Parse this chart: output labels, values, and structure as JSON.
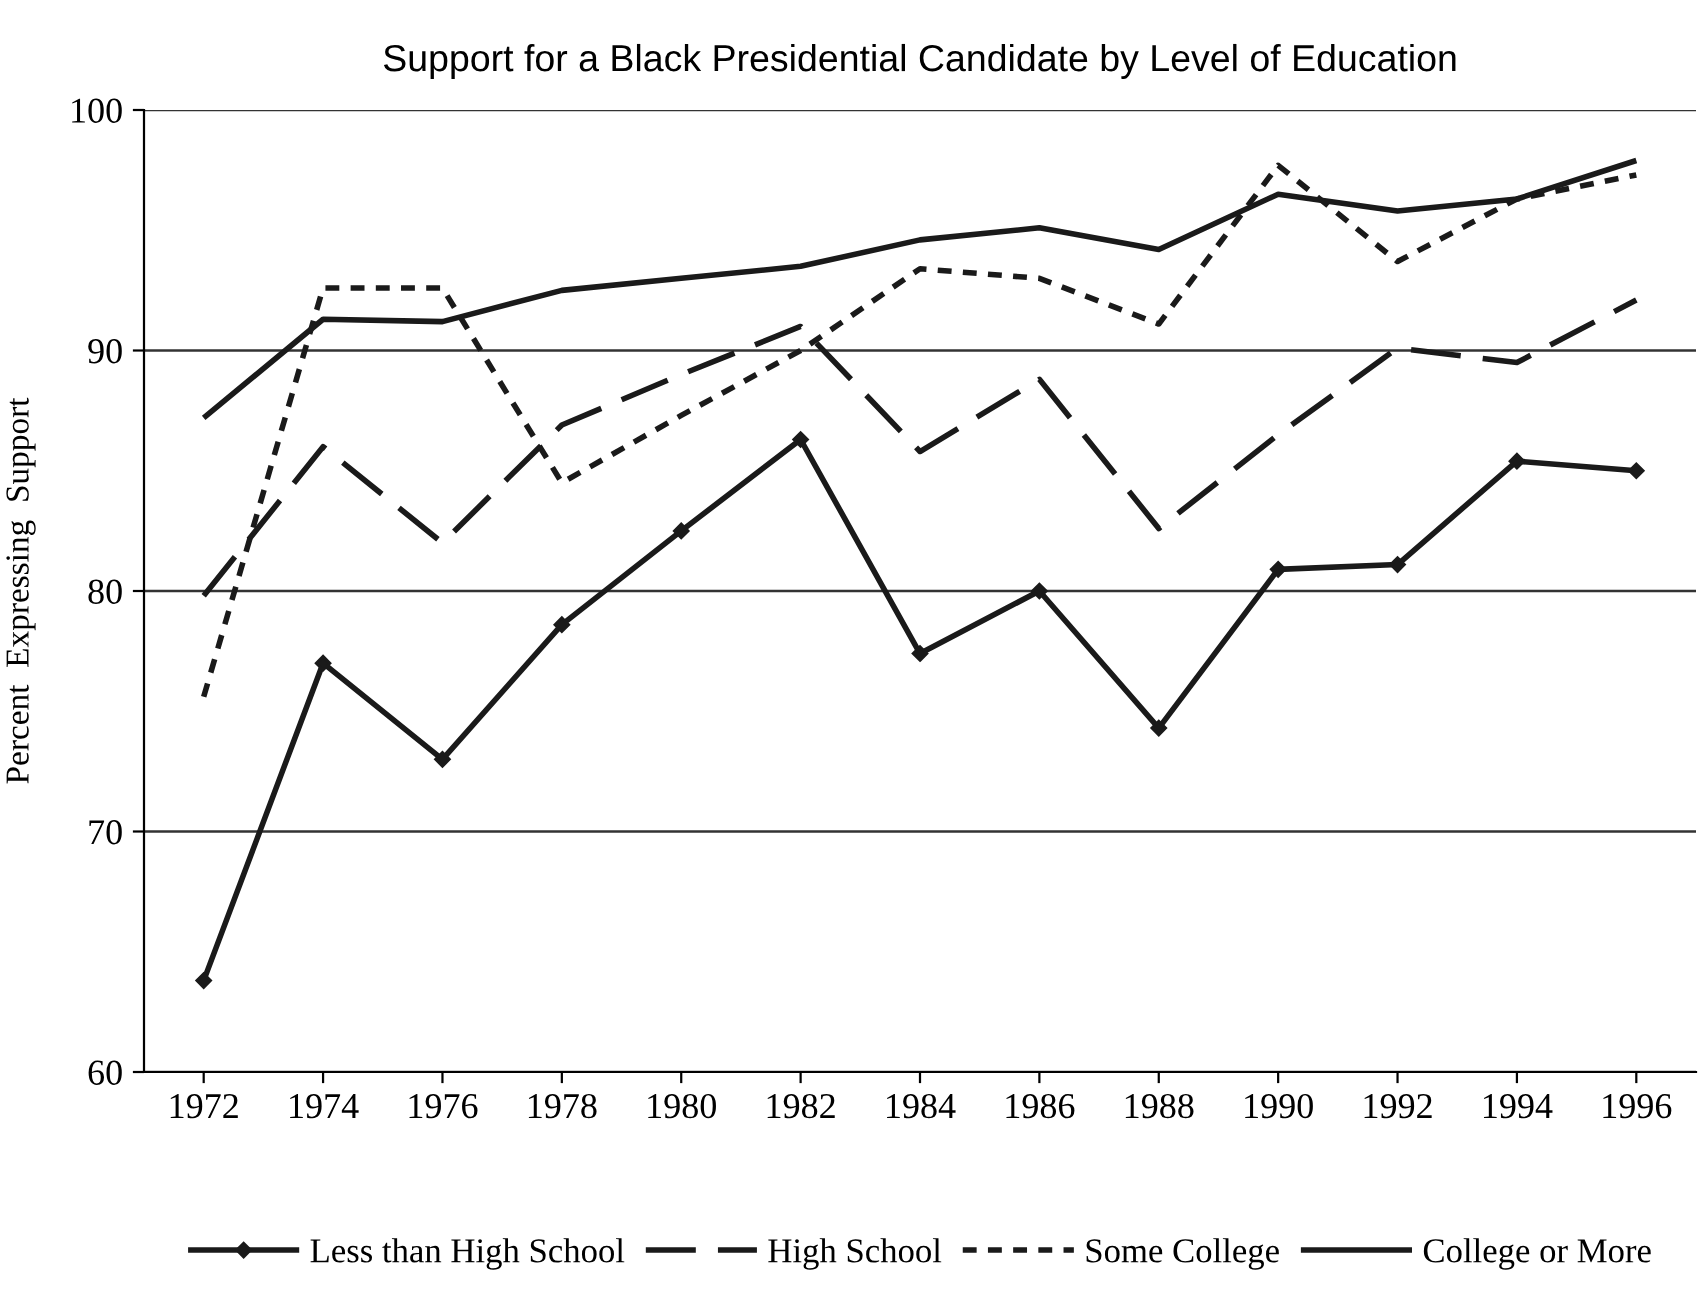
{
  "chart_data": {
    "type": "line",
    "title": "Support for a Black Presidential Candidate by Level of Education",
    "ylabel": "Percent  Expressing  Support",
    "categories": [
      "1972",
      "1974",
      "1976",
      "1978",
      "1980",
      "1982",
      "1984",
      "1986",
      "1988",
      "1990",
      "1992",
      "1994",
      "1996"
    ],
    "series": [
      {
        "name": "Less than High School",
        "color": "#1a1a1a",
        "marker": "diamond",
        "line_style": "solid",
        "values": [
          63.8,
          77.0,
          73.0,
          78.6,
          82.5,
          86.3,
          77.4,
          80.0,
          74.3,
          80.9,
          81.1,
          85.4,
          85.0
        ]
      },
      {
        "name": "High School",
        "color": "#1a1a1a",
        "marker": "none",
        "line_style": "dashed",
        "values": [
          79.8,
          86.0,
          82.0,
          86.9,
          89.0,
          91.0,
          85.8,
          88.8,
          82.6,
          86.5,
          90.1,
          89.5,
          92.1
        ]
      },
      {
        "name": "Some College",
        "color": "#1a1a1a",
        "marker": "none",
        "line_style": "dotted",
        "values": [
          75.6,
          92.6,
          92.6,
          84.5,
          87.3,
          90.0,
          93.4,
          93.0,
          91.1,
          97.7,
          93.7,
          96.3,
          97.3
        ]
      },
      {
        "name": "College or More",
        "color": "#1a1a1a",
        "marker": "none",
        "line_style": "solid",
        "values": [
          87.2,
          91.3,
          91.2,
          92.5,
          93.0,
          93.5,
          94.6,
          95.1,
          94.2,
          96.5,
          95.8,
          96.3,
          97.9
        ]
      }
    ],
    "ylim": [
      60,
      100
    ],
    "yticks": [
      60,
      70,
      80,
      90,
      100
    ],
    "grid": "y",
    "legend": "bottom"
  }
}
